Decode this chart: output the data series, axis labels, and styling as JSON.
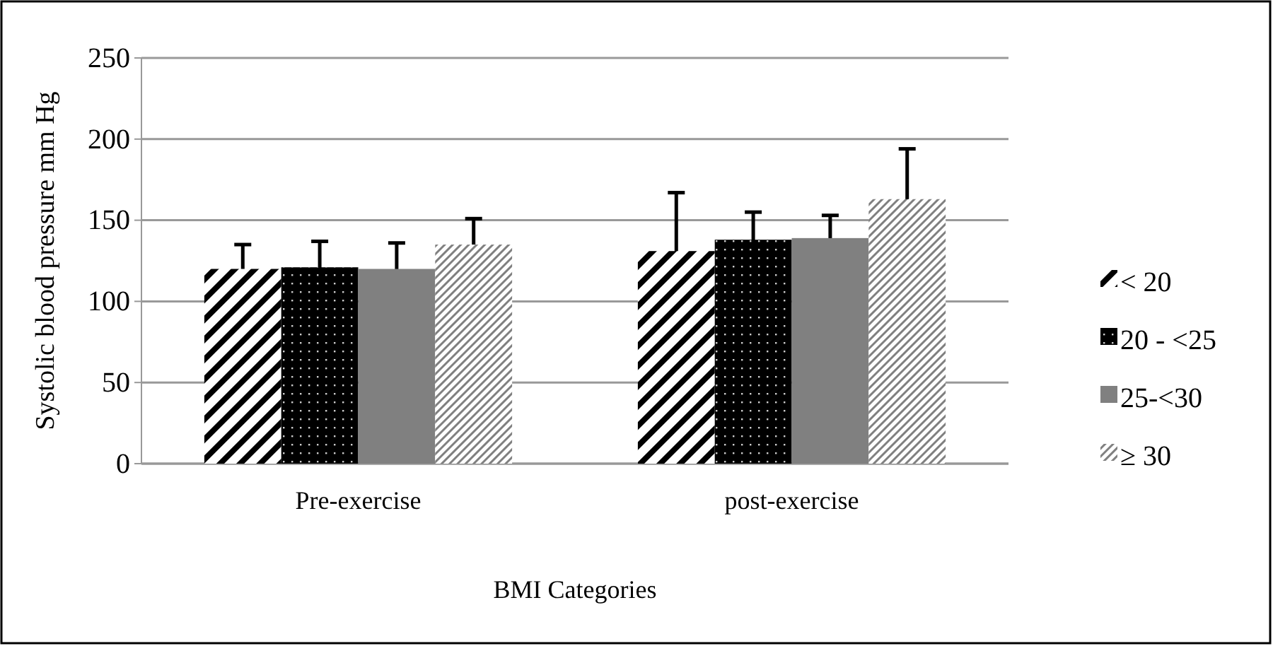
{
  "chart_data": {
    "type": "bar",
    "xlabel": "BMI Categories",
    "ylabel": "Systolic blood pressure mm Hg",
    "categories": [
      "Pre-exercise",
      "post-exercise"
    ],
    "series": [
      {
        "name": "< 20",
        "color": "#000000",
        "values": [
          120,
          131
        ],
        "errors": [
          15,
          36
        ]
      },
      {
        "name": "20 - <25",
        "color": "#000000",
        "values": [
          121,
          138
        ],
        "errors": [
          16,
          17
        ]
      },
      {
        "name": "25-<30",
        "color": "#808080",
        "values": [
          120,
          139
        ],
        "errors": [
          16,
          14
        ]
      },
      {
        "name": "≥ 30",
        "color": "#808080",
        "values": [
          135,
          163
        ],
        "errors": [
          16,
          31
        ]
      }
    ],
    "ylim": [
      0,
      250
    ],
    "yticks": [
      0,
      50,
      100,
      150,
      200,
      250
    ],
    "grid": "y",
    "legend": "right"
  }
}
